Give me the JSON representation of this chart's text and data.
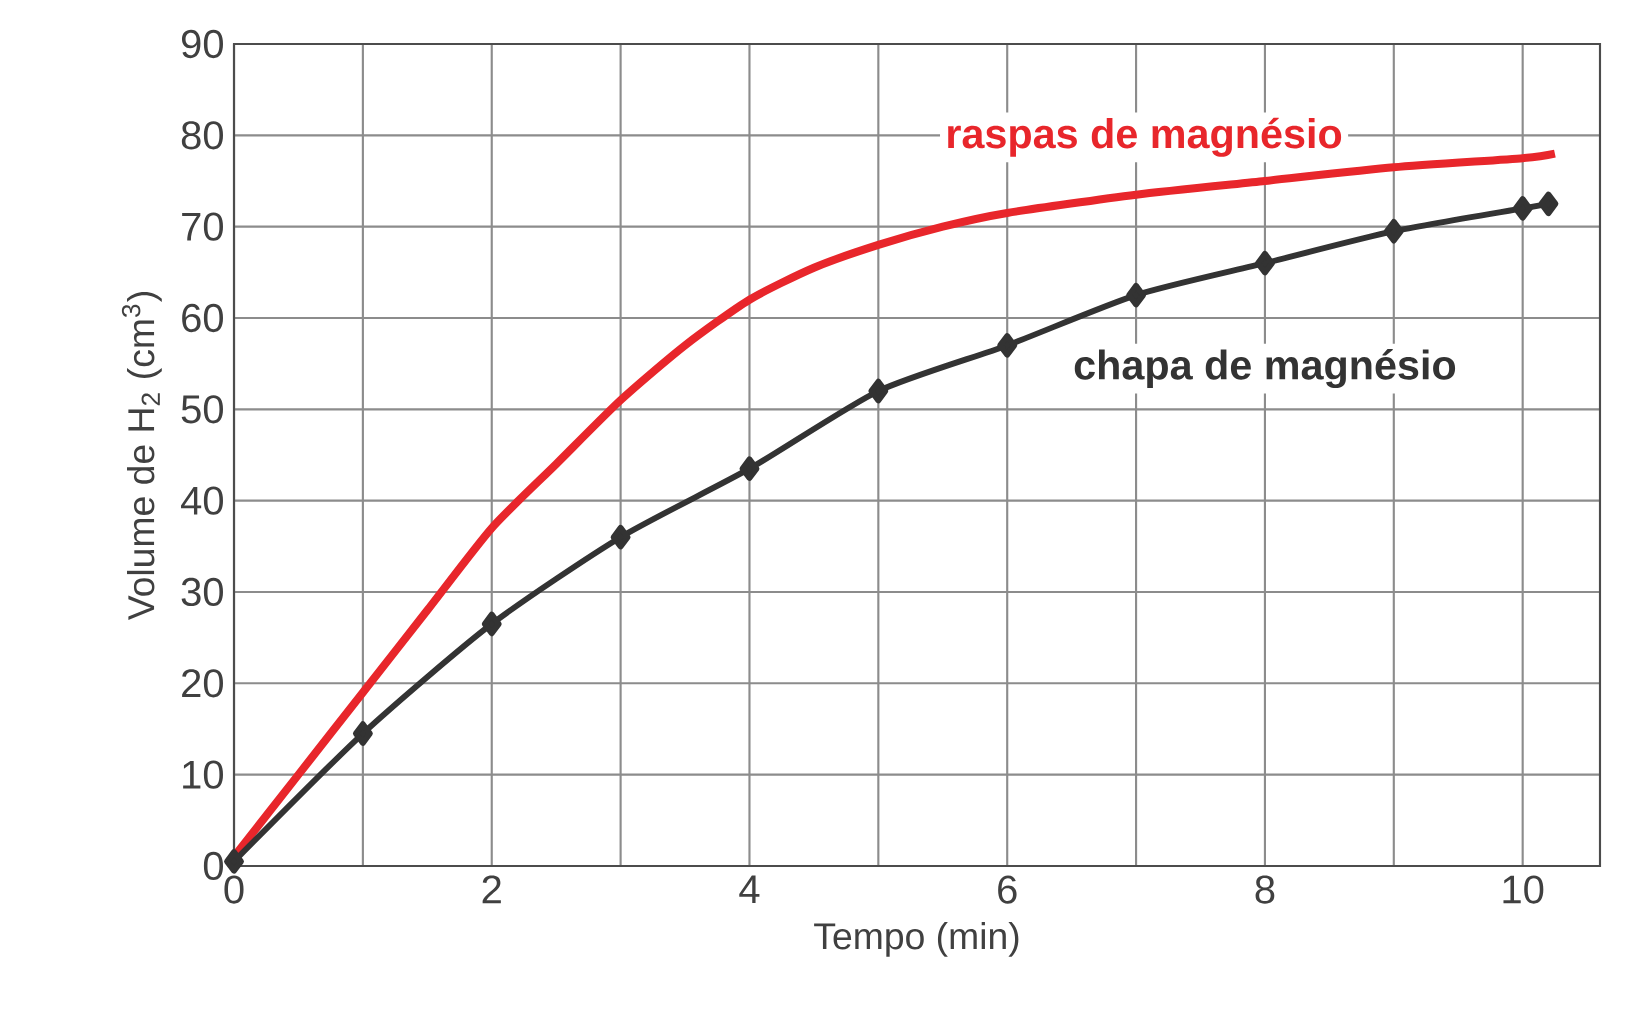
{
  "chart_data": {
    "type": "line",
    "xlabel": "Tempo (min)",
    "ylabel": "Volume de H$_{2}$ (cm$^{3}$)",
    "xlim": [
      0,
      10.6
    ],
    "ylim": [
      0,
      90
    ],
    "xticks": [
      0,
      {
        "value": 1,
        "label": null
      },
      2,
      {
        "value": 3,
        "label": null
      },
      4,
      {
        "value": 5,
        "label": null
      },
      6,
      {
        "value": 7,
        "label": null
      },
      8,
      {
        "value": 9,
        "label": null
      },
      10
    ],
    "yticks": [
      0,
      10,
      20,
      30,
      40,
      50,
      60,
      70,
      80,
      90
    ],
    "grid": true,
    "line_style": "solid",
    "series": [
      {
        "name": "raspas de magnésio",
        "color": "#e8262b",
        "marker": "none",
        "x": [
          0,
          0.5,
          1,
          1.5,
          2,
          2.5,
          3,
          3.5,
          4,
          4.5,
          5,
          5.5,
          6,
          7,
          8,
          9,
          10,
          10.25
        ],
        "values": [
          1,
          10,
          19,
          28,
          37,
          44,
          51,
          57,
          62,
          65.5,
          68,
          70,
          71.5,
          73.5,
          75,
          76.5,
          77.5,
          78
        ]
      },
      {
        "name": "chapa de magnésio",
        "color": "#333333",
        "marker": "diamond",
        "x": [
          0,
          1,
          2,
          3,
          4,
          5,
          6,
          7,
          8,
          9,
          10,
          10.2
        ],
        "values": [
          0.5,
          14.5,
          26.5,
          36,
          43.5,
          52,
          57,
          62.5,
          66,
          69.5,
          72,
          72.5
        ]
      }
    ]
  }
}
